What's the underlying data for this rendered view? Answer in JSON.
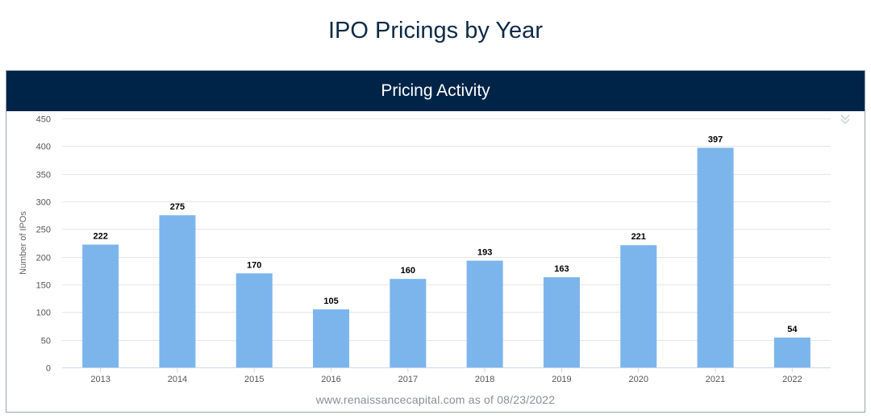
{
  "page": {
    "title": "IPO Pricings by Year"
  },
  "panel": {
    "title": "Pricing Activity"
  },
  "footer": {
    "text": "www.renaissancecapital.com as of 08/23/2022"
  },
  "colors": {
    "bar": "#7cb5ec",
    "header": "#002448",
    "title": "#0e2a47",
    "grid": "#e6e6e6",
    "axis_text": "#555555"
  },
  "icons": {
    "menu": "double-chevron-down-icon"
  },
  "chart_data": {
    "type": "bar",
    "title": "Pricing Activity",
    "xlabel": "",
    "ylabel": "Number of IPOs",
    "categories": [
      "2013",
      "2014",
      "2015",
      "2016",
      "2017",
      "2018",
      "2019",
      "2020",
      "2021",
      "2022"
    ],
    "values": [
      222,
      275,
      170,
      105,
      160,
      193,
      163,
      221,
      397,
      54
    ],
    "ylim": [
      0,
      450
    ],
    "yticks": [
      0,
      50,
      100,
      150,
      200,
      250,
      300,
      350,
      400,
      450
    ],
    "grid": true,
    "legend": "none"
  }
}
